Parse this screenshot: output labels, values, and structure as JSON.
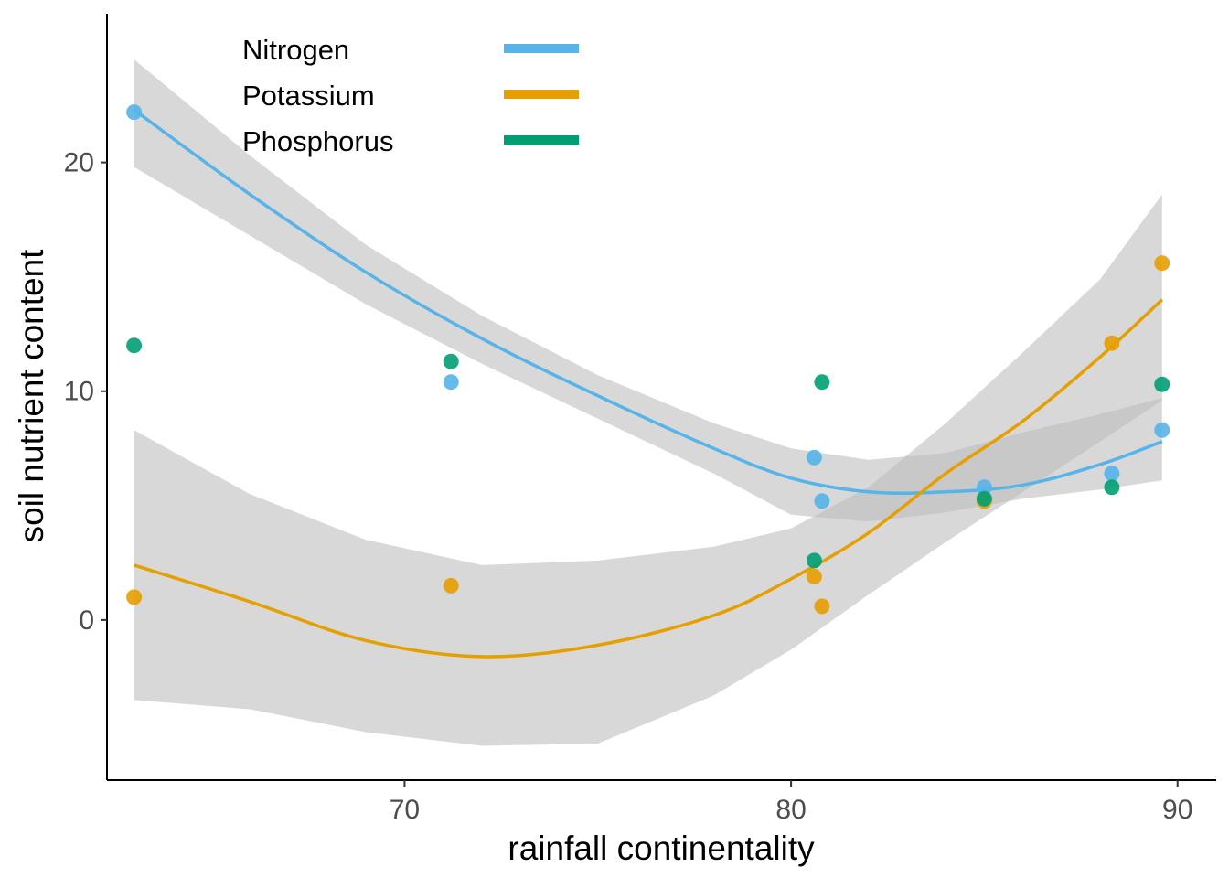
{
  "chart_data": {
    "type": "scatter",
    "xlabel": "rainfall continentality",
    "ylabel": "soil nutrient content",
    "xlim": [
      62.3,
      91.0
    ],
    "ylim": [
      -7.0,
      26.5
    ],
    "x_ticks": [
      70,
      80,
      90
    ],
    "y_ticks": [
      0,
      10,
      20
    ],
    "grid": false,
    "legend_position": "top-left",
    "ribbon_color": "#bebebe",
    "series": [
      {
        "name": "Nitrogen",
        "color": "#56B4E9",
        "points": [
          [
            63.0,
            22.2
          ],
          [
            71.2,
            10.4
          ],
          [
            80.6,
            7.1
          ],
          [
            80.8,
            5.2
          ],
          [
            85.0,
            5.8
          ],
          [
            88.3,
            6.4
          ],
          [
            89.6,
            8.3
          ]
        ],
        "fit": [
          [
            63.0,
            22.3
          ],
          [
            66.0,
            18.6
          ],
          [
            69.0,
            15.2
          ],
          [
            72.0,
            12.3
          ],
          [
            75.0,
            9.8
          ],
          [
            78.0,
            7.5
          ],
          [
            80.0,
            6.2
          ],
          [
            82.0,
            5.6
          ],
          [
            84.0,
            5.6
          ],
          [
            86.0,
            5.9
          ],
          [
            88.0,
            6.8
          ],
          [
            89.6,
            7.8
          ]
        ],
        "ribbon_upper": [
          [
            63.0,
            24.5
          ],
          [
            66.0,
            20.3
          ],
          [
            69.0,
            16.4
          ],
          [
            72.0,
            13.3
          ],
          [
            75.0,
            10.7
          ],
          [
            78.0,
            8.6
          ],
          [
            80.0,
            7.5
          ],
          [
            82.0,
            7.0
          ],
          [
            84.0,
            7.3
          ],
          [
            86.0,
            8.2
          ],
          [
            88.0,
            9.0
          ],
          [
            89.6,
            9.7
          ]
        ],
        "ribbon_lower": [
          [
            63.0,
            19.8
          ],
          [
            66.0,
            16.8
          ],
          [
            69.0,
            13.8
          ],
          [
            72.0,
            11.2
          ],
          [
            75.0,
            8.8
          ],
          [
            78.0,
            6.4
          ],
          [
            80.0,
            4.6
          ],
          [
            82.0,
            4.3
          ],
          [
            84.0,
            4.7
          ],
          [
            86.0,
            5.3
          ],
          [
            88.0,
            5.7
          ],
          [
            89.6,
            6.1
          ]
        ]
      },
      {
        "name": "Potassium",
        "color": "#E69F00",
        "points": [
          [
            63.0,
            1.0
          ],
          [
            71.2,
            1.5
          ],
          [
            80.6,
            1.9
          ],
          [
            80.8,
            0.6
          ],
          [
            85.0,
            5.2
          ],
          [
            88.3,
            12.1
          ],
          [
            89.6,
            15.6
          ]
        ],
        "fit": [
          [
            63.0,
            2.4
          ],
          [
            66.0,
            0.8
          ],
          [
            69.0,
            -0.9
          ],
          [
            72.0,
            -1.6
          ],
          [
            75.0,
            -1.1
          ],
          [
            78.0,
            0.2
          ],
          [
            80.0,
            1.8
          ],
          [
            82.0,
            3.8
          ],
          [
            84.0,
            6.4
          ],
          [
            86.0,
            8.7
          ],
          [
            88.0,
            11.5
          ],
          [
            89.6,
            14.0
          ]
        ],
        "ribbon_upper": [
          [
            63.0,
            8.3
          ],
          [
            66.0,
            5.5
          ],
          [
            69.0,
            3.5
          ],
          [
            72.0,
            2.4
          ],
          [
            75.0,
            2.6
          ],
          [
            78.0,
            3.2
          ],
          [
            80.0,
            4.0
          ],
          [
            82.0,
            5.8
          ],
          [
            84.0,
            8.6
          ],
          [
            86.0,
            11.7
          ],
          [
            88.0,
            14.9
          ],
          [
            89.6,
            18.6
          ]
        ],
        "ribbon_lower": [
          [
            63.0,
            -3.5
          ],
          [
            66.0,
            -3.9
          ],
          [
            69.0,
            -4.9
          ],
          [
            72.0,
            -5.5
          ],
          [
            75.0,
            -5.4
          ],
          [
            78.0,
            -3.3
          ],
          [
            80.0,
            -1.3
          ],
          [
            82.0,
            1.1
          ],
          [
            84.0,
            3.4
          ],
          [
            86.0,
            5.6
          ],
          [
            88.0,
            7.8
          ],
          [
            89.6,
            9.6
          ]
        ]
      },
      {
        "name": "Phosphorus",
        "color": "#009E73",
        "points": [
          [
            63.0,
            12.0
          ],
          [
            71.2,
            11.3
          ],
          [
            80.6,
            2.6
          ],
          [
            80.8,
            10.4
          ],
          [
            85.0,
            5.3
          ],
          [
            88.3,
            5.8
          ],
          [
            89.6,
            10.3
          ]
        ]
      }
    ]
  }
}
